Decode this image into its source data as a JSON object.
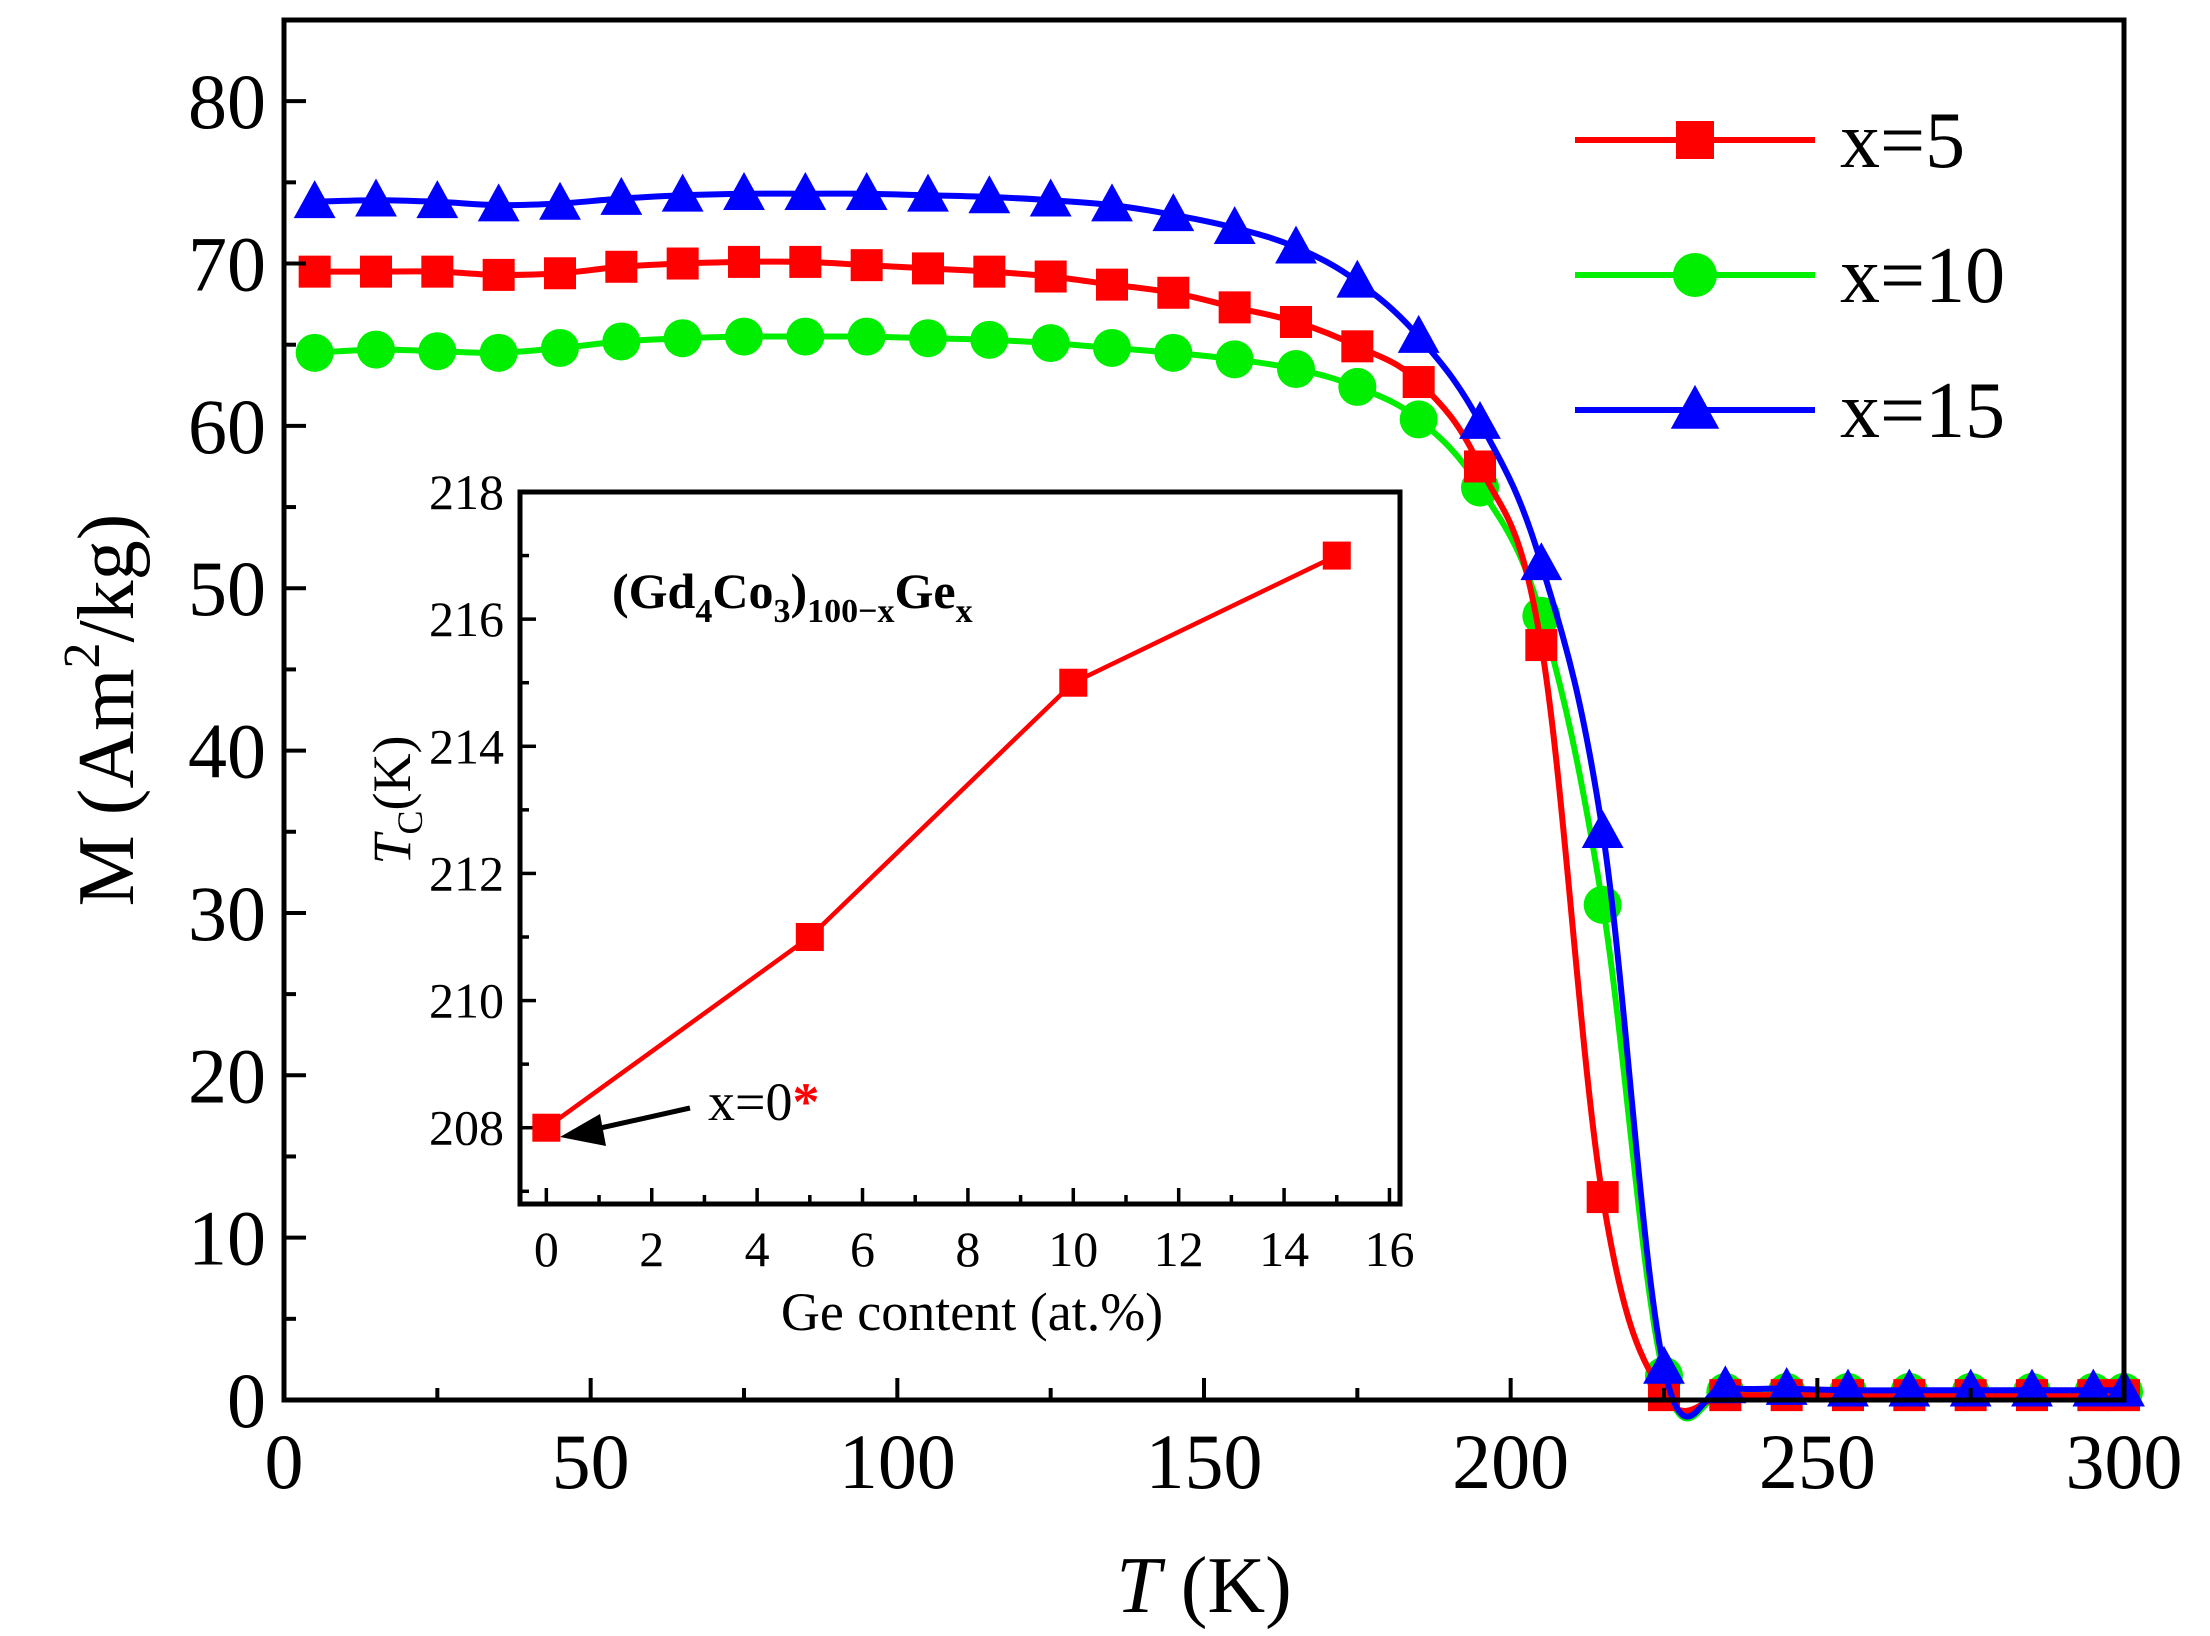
{
  "chart_data": [
    {
      "id": "main",
      "type": "line",
      "title": "",
      "xlabel": "T (K)",
      "xlabel_italic": "T",
      "xlabel_rest": " (K)",
      "ylabel": "M (Am²/kg)",
      "ylabel_parts": {
        "main": "M (Am",
        "sup": "2",
        "tail": "/kg)"
      },
      "xlim": [
        0,
        300
      ],
      "ylim": [
        0,
        85
      ],
      "xticks": [
        0,
        50,
        100,
        150,
        200,
        250,
        300
      ],
      "yticks": [
        0,
        10,
        20,
        30,
        40,
        50,
        60,
        70,
        80
      ],
      "legend_position": "top-right",
      "x": [
        5,
        15,
        25,
        35,
        45,
        55,
        65,
        75,
        85,
        95,
        105,
        115,
        125,
        135,
        145,
        155,
        165,
        175,
        185,
        195,
        205,
        215,
        225,
        235,
        245,
        255,
        265,
        275,
        285,
        295,
        300
      ],
      "series": [
        {
          "name": "x=5",
          "color": "#ff0000",
          "marker": "square",
          "values": [
            69.5,
            69.5,
            69.5,
            69.3,
            69.4,
            69.8,
            70.0,
            70.1,
            70.1,
            69.9,
            69.7,
            69.5,
            69.2,
            68.7,
            68.2,
            67.3,
            66.4,
            64.9,
            62.7,
            57.5,
            46.5,
            12.5,
            0.3,
            0.3,
            0.3,
            0.3,
            0.3,
            0.3,
            0.3,
            0.3,
            0.3
          ]
        },
        {
          "name": "x=10",
          "color": "#00ee00",
          "marker": "circle",
          "values": [
            64.5,
            64.7,
            64.6,
            64.5,
            64.8,
            65.2,
            65.4,
            65.5,
            65.5,
            65.5,
            65.4,
            65.3,
            65.1,
            64.8,
            64.5,
            64.1,
            63.5,
            62.4,
            60.4,
            56.2,
            48.3,
            30.5,
            1.5,
            0.5,
            0.5,
            0.5,
            0.5,
            0.5,
            0.5,
            0.5,
            0.5
          ]
        },
        {
          "name": "x=15",
          "color": "#0000ff",
          "marker": "triangle",
          "values": [
            73.8,
            73.9,
            73.8,
            73.6,
            73.7,
            74.0,
            74.2,
            74.3,
            74.3,
            74.3,
            74.2,
            74.1,
            73.9,
            73.6,
            73.0,
            72.2,
            71.0,
            68.9,
            65.5,
            60.2,
            51.5,
            35.0,
            2.0,
            0.8,
            0.7,
            0.6,
            0.6,
            0.6,
            0.6,
            0.6,
            0.6
          ]
        }
      ]
    },
    {
      "id": "inset",
      "type": "line",
      "title": "(Gd4Co3)100−xGex",
      "title_parts": {
        "a": "(Gd",
        "s1": "4",
        "b": "Co",
        "s2": "3",
        "c": ")",
        "s3": "100−x",
        "d": "Ge",
        "s4": "x"
      },
      "xlabel": "Ge content (at.%)",
      "ylabel": "TC(K)",
      "ylabel_parts": {
        "main": "T",
        "sub": "C",
        "tail": "(K)"
      },
      "xlim": [
        -0.5,
        16.2
      ],
      "ylim": [
        206.8,
        218
      ],
      "xticks": [
        0,
        2,
        4,
        6,
        8,
        10,
        12,
        14,
        16
      ],
      "yticks": [
        208,
        210,
        212,
        214,
        216,
        218
      ],
      "color": "#ff0000",
      "marker": "square",
      "x": [
        0,
        5,
        10,
        15
      ],
      "values": [
        208,
        211,
        215,
        217
      ],
      "annotation": {
        "text": "x=0",
        "mark": "*",
        "mark_color": "#ff0000",
        "points_to": [
          0,
          208
        ]
      }
    }
  ]
}
